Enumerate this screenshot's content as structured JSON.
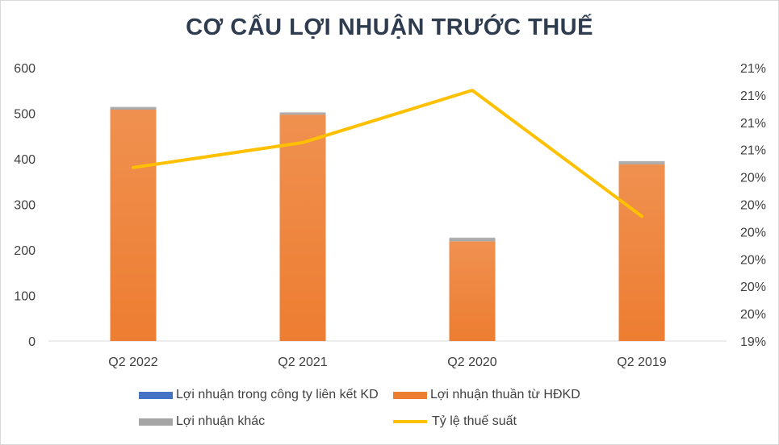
{
  "title": "CƠ CẤU LỢI NHUẬN TRƯỚC THUẾ",
  "chart_data": {
    "type": "bar",
    "stacked": true,
    "categories": [
      "Q2 2022",
      "Q2 2021",
      "Q2 2020",
      "Q2 2019"
    ],
    "series": [
      {
        "name": "Lợi nhuận trong công ty liên kết KD",
        "values": [
          0,
          0,
          0,
          0
        ],
        "color": "#4472c4"
      },
      {
        "name": "Lợi nhuận thuần từ HĐKD",
        "values": [
          508,
          497,
          219,
          388
        ],
        "color": "#ed7d31"
      },
      {
        "name": "Lợi nhuận khác",
        "values": [
          6,
          5,
          8,
          7
        ],
        "color": "#a5a5a5"
      }
    ],
    "line_series": {
      "name": "Tỷ lệ thuế suất",
      "values": [
        20.46,
        20.67,
        21.11,
        20.05
      ],
      "color": "#ffc000",
      "axis": "secondary"
    },
    "ylim": [
      0,
      600
    ],
    "y_ticks": [
      0,
      100,
      200,
      300,
      400,
      500,
      600
    ],
    "y2lim": [
      19.0,
      21.3
    ],
    "y2_tick_labels": [
      "19%",
      "20%",
      "20%",
      "20%",
      "20%",
      "20%",
      "20%",
      "21%",
      "21%",
      "21%",
      "21%"
    ],
    "legend_position": "bottom",
    "grid": false
  }
}
